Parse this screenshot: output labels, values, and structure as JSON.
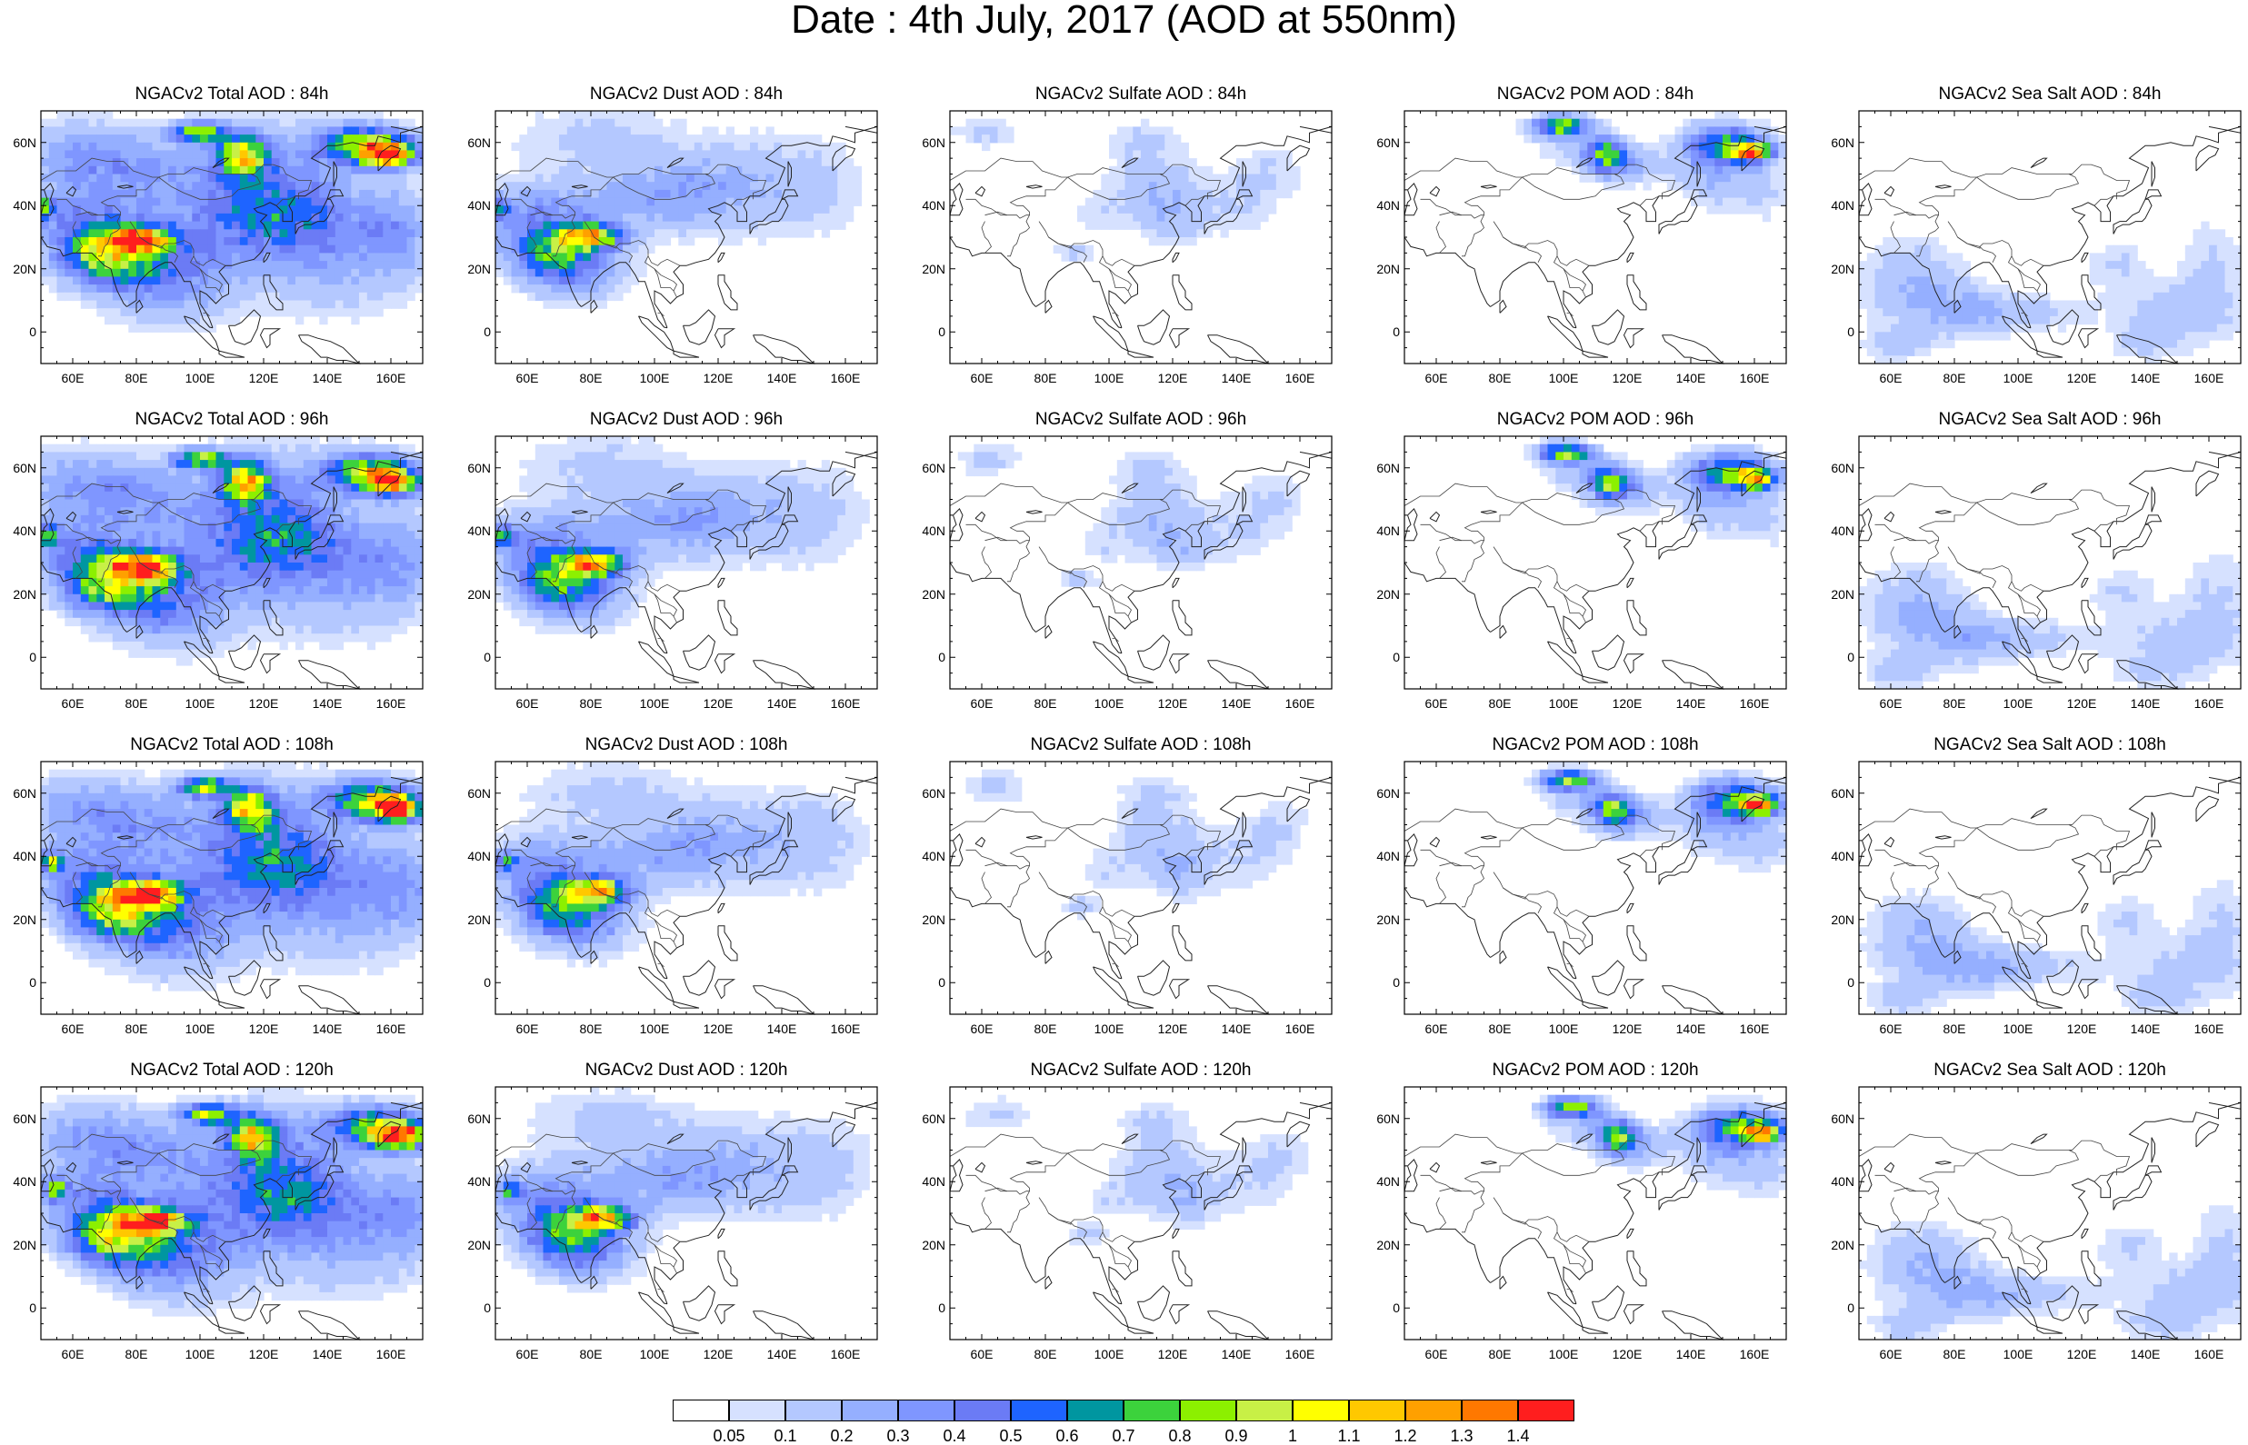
{
  "title": "Date : 4th July, 2017 (AOD at 550nm)",
  "rows": [
    {
      "lead": "84h",
      "panels": [
        {
          "id": "total84",
          "title": "NGACv2 Total AOD : 84h",
          "species": "total"
        },
        {
          "id": "dust84",
          "title": "NGACv2 Dust AOD : 84h",
          "species": "dust"
        },
        {
          "id": "sulf84",
          "title": "NGACv2 Sulfate AOD : 84h",
          "species": "sulfate"
        },
        {
          "id": "pom84",
          "title": "NGACv2 POM AOD : 84h",
          "species": "pom"
        },
        {
          "id": "salt84",
          "title": "NGACv2 Sea Salt AOD : 84h",
          "species": "seasalt"
        }
      ]
    },
    {
      "lead": "96h",
      "panels": [
        {
          "id": "total96",
          "title": "NGACv2 Total AOD : 96h",
          "species": "total"
        },
        {
          "id": "dust96",
          "title": "NGACv2 Dust AOD : 96h",
          "species": "dust"
        },
        {
          "id": "sulf96",
          "title": "NGACv2 Sulfate AOD : 96h",
          "species": "sulfate"
        },
        {
          "id": "pom96",
          "title": "NGACv2 POM AOD : 96h",
          "species": "pom"
        },
        {
          "id": "salt96",
          "title": "NGACv2 Sea Salt AOD : 96h",
          "species": "seasalt"
        }
      ]
    },
    {
      "lead": "108h",
      "panels": [
        {
          "id": "total108",
          "title": "NGACv2 Total AOD : 108h",
          "species": "total"
        },
        {
          "id": "dust108",
          "title": "NGACv2 Dust AOD : 108h",
          "species": "dust"
        },
        {
          "id": "sulf108",
          "title": "NGACv2 Sulfate AOD : 108h",
          "species": "sulfate"
        },
        {
          "id": "pom108",
          "title": "NGACv2 POM AOD : 108h",
          "species": "pom"
        },
        {
          "id": "salt108",
          "title": "NGACv2 Sea Salt AOD : 108h",
          "species": "seasalt"
        }
      ]
    },
    {
      "lead": "120h",
      "panels": [
        {
          "id": "total120",
          "title": "NGACv2 Total AOD : 120h",
          "species": "total"
        },
        {
          "id": "dust120",
          "title": "NGACv2 Dust AOD : 120h",
          "species": "dust"
        },
        {
          "id": "sulf120",
          "title": "NGACv2 Sulfate AOD : 120h",
          "species": "sulfate"
        },
        {
          "id": "pom120",
          "title": "NGACv2 POM AOD : 120h",
          "species": "pom"
        },
        {
          "id": "salt120",
          "title": "NGACv2 Sea Salt  AOD : 120h",
          "species": "seasalt"
        }
      ]
    }
  ],
  "lat_ticks": [
    "60N",
    "40N",
    "20N",
    "0"
  ],
  "lon_ticks": [
    "60E",
    "80E",
    "100E",
    "120E",
    "140E",
    "160E"
  ],
  "colorbar": {
    "colors": [
      "#ffffff",
      "#d6e1ff",
      "#b4c8ff",
      "#95afff",
      "#7f96ff",
      "#6b7bf5",
      "#1e64ff",
      "#0096a0",
      "#3cd23c",
      "#8cf000",
      "#c8f046",
      "#ffff00",
      "#ffc800",
      "#ffa000",
      "#ff7800",
      "#ff1e1e"
    ],
    "labels": [
      "0.05",
      "0.1",
      "0.2",
      "0.3",
      "0.4",
      "0.5",
      "0.6",
      "0.7",
      "0.8",
      "0.9",
      "1",
      "1.1",
      "1.2",
      "1.3",
      "1.4"
    ]
  }
}
